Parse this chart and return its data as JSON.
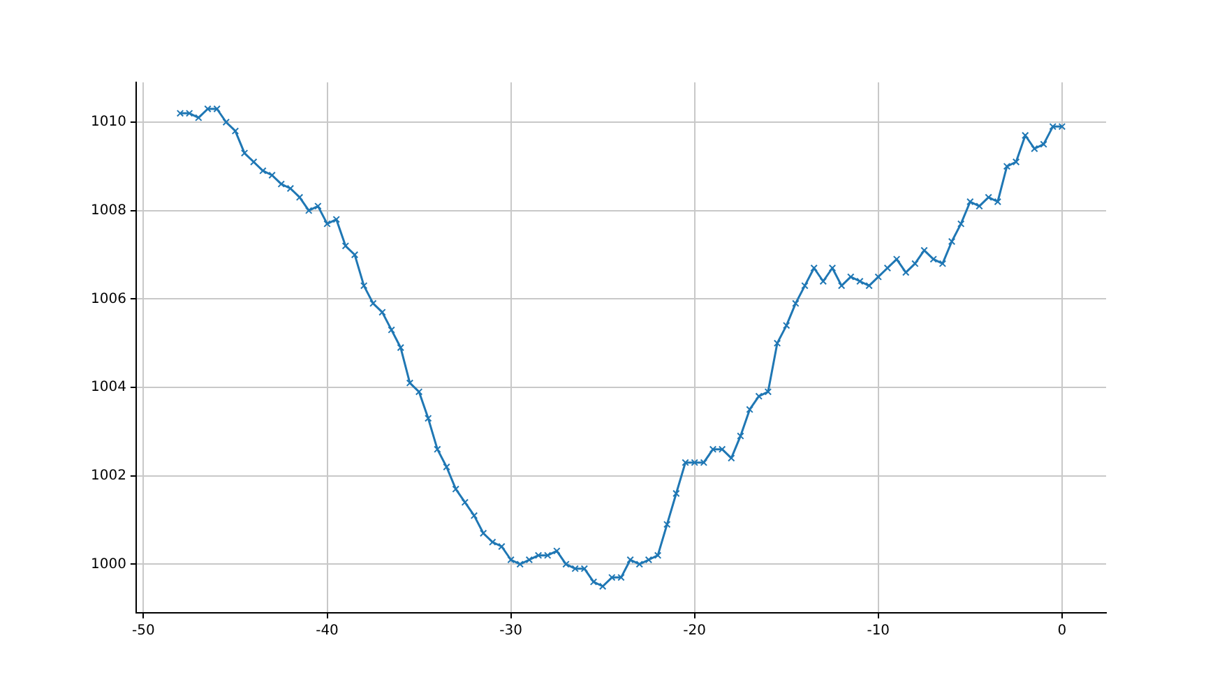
{
  "chart_data": {
    "type": "line",
    "x": [
      -48,
      -47.5,
      -47,
      -46.5,
      -46,
      -45.5,
      -45,
      -44.5,
      -44,
      -43.5,
      -43,
      -42.5,
      -42,
      -41.5,
      -41,
      -40.5,
      -40,
      -39.5,
      -39,
      -38.5,
      -38,
      -37.5,
      -37,
      -36.5,
      -36,
      -35.5,
      -35,
      -34.5,
      -34,
      -33.5,
      -33,
      -32.5,
      -32,
      -31.5,
      -31,
      -30.5,
      -30,
      -29.5,
      -29,
      -28.5,
      -28,
      -27.5,
      -27,
      -26.5,
      -26,
      -25.5,
      -25,
      -24.5,
      -24,
      -23.5,
      -23,
      -22.5,
      -22,
      -21.5,
      -21,
      -20.5,
      -20,
      -19.5,
      -19,
      -18.5,
      -18,
      -17.5,
      -17,
      -16.5,
      -16,
      -15.5,
      -15,
      -14.5,
      -14,
      -13.5,
      -13,
      -12.5,
      -12,
      -11.5,
      -11,
      -10.5,
      -10,
      -9.5,
      -9,
      -8.5,
      -8,
      -7.5,
      -7,
      -6.5,
      -6,
      -5.5,
      -5,
      -4.5,
      -4,
      -3.5,
      -3,
      -2.5,
      -2,
      -1.5,
      -1,
      -0.5,
      0
    ],
    "series": [
      {
        "color": "#1f77b4",
        "values": [
          1010.2,
          1010.2,
          1010.1,
          1010.3,
          1010.3,
          1010.0,
          1009.8,
          1009.3,
          1009.1,
          1008.9,
          1008.8,
          1008.6,
          1008.5,
          1008.3,
          1008.0,
          1008.1,
          1007.7,
          1007.8,
          1007.2,
          1007.0,
          1006.3,
          1005.9,
          1005.7,
          1005.3,
          1004.9,
          1004.1,
          1003.9,
          1003.3,
          1002.6,
          1002.2,
          1001.7,
          1001.4,
          1001.1,
          1000.7,
          1000.5,
          1000.4,
          1000.1,
          1000.0,
          1000.1,
          1000.2,
          1000.2,
          1000.3,
          1000.0,
          999.9,
          999.9,
          999.6,
          999.5,
          999.7,
          999.7,
          1000.1,
          1000.0,
          1000.1,
          1000.2,
          1000.9,
          1001.6,
          1002.3,
          1002.3,
          1002.3,
          1002.6,
          1002.6,
          1002.4,
          1002.9,
          1003.5,
          1003.8,
          1003.9,
          1005.0,
          1005.4,
          1005.9,
          1006.3,
          1006.7,
          1006.4,
          1006.7,
          1006.3,
          1006.5,
          1006.4,
          1006.3,
          1006.5,
          1006.7,
          1006.9,
          1006.6,
          1006.8,
          1007.1,
          1006.9,
          1006.8,
          1007.3,
          1007.7,
          1008.2,
          1008.1,
          1008.3,
          1008.2,
          1009.0,
          1009.1,
          1009.7,
          1009.4,
          1009.5,
          1009.9,
          1009.9
        ]
      }
    ],
    "xlim": [
      -50.4,
      2.4
    ],
    "xticks": [
      -50,
      -40,
      -30,
      -20,
      -10,
      0
    ],
    "ylim": [
      998.9,
      1010.9
    ],
    "yticks": [
      1000,
      1002,
      1004,
      1006,
      1008,
      1010
    ],
    "grid": true,
    "marker": "cross",
    "line_style": "solid"
  }
}
